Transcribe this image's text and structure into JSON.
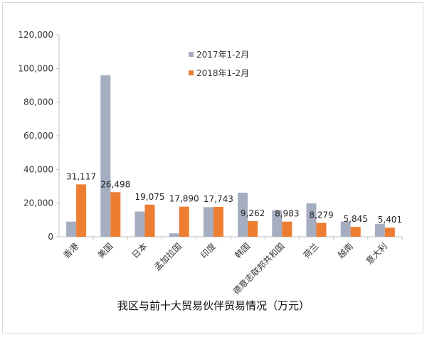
{
  "chart_data": {
    "type": "bar",
    "title": "我区与前十大贸易伙伴贸易情况（万元）",
    "categories": [
      "香港",
      "美国",
      "日本",
      "孟加拉国",
      "印度",
      "韩国",
      "德意志联邦共和国",
      "荷兰",
      "越南",
      "意大利"
    ],
    "series": [
      {
        "name": "2017年1-2月",
        "color": "#a5adc0",
        "values": [
          9000,
          96000,
          15000,
          2000,
          17600,
          26200,
          15700,
          19800,
          9000,
          7700
        ]
      },
      {
        "name": "2018年1-2月",
        "color": "#ed7d31",
        "values": [
          31117,
          26498,
          19075,
          17890,
          17743,
          9262,
          8983,
          8279,
          5845,
          5401
        ],
        "labels": [
          "31,117",
          "26,498",
          "19,075",
          "17,890",
          "17,743",
          "9,262",
          "8,983",
          "8,279",
          "5,845",
          "5,401"
        ]
      }
    ],
    "ylim": [
      0,
      120000
    ],
    "yticks": [
      "0",
      "20,000",
      "40,000",
      "60,000",
      "80,000",
      "100,000",
      "120,000"
    ],
    "grid": false,
    "legend": "top-center"
  }
}
